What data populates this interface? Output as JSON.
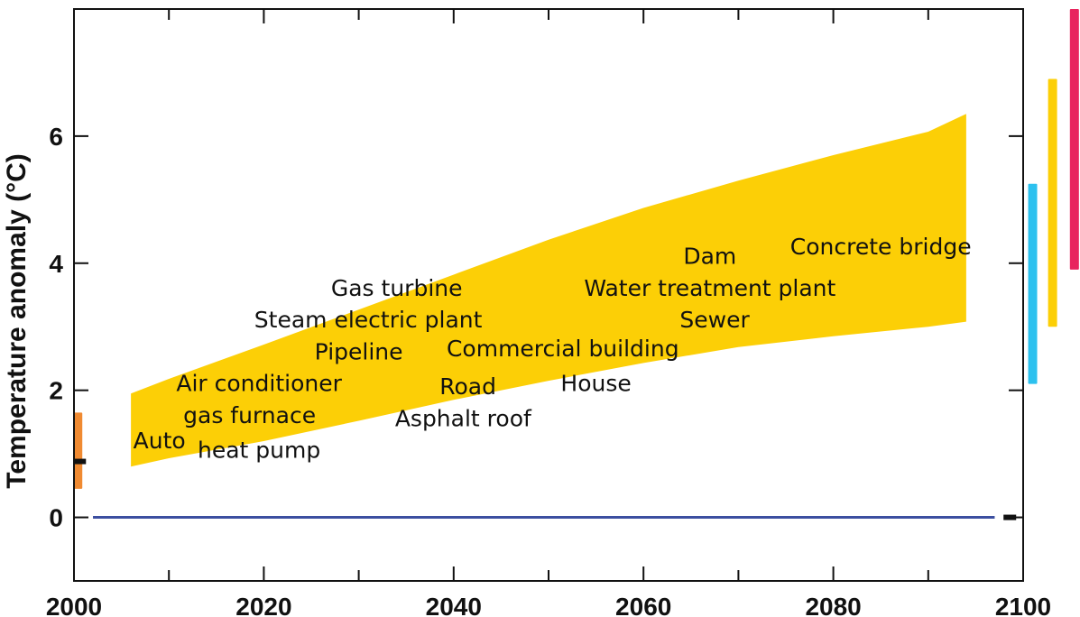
{
  "chart_data": {
    "type": "area",
    "title": "",
    "xlabel": "",
    "ylabel": "Temperature anomaly (°C)",
    "xlim": [
      2000,
      2100
    ],
    "ylim": [
      -1,
      8
    ],
    "x_ticks": [
      2000,
      2020,
      2040,
      2060,
      2080,
      2100
    ],
    "x_minor_ticks": [
      2010,
      2030,
      2050,
      2070,
      2090
    ],
    "y_ticks": [
      0,
      2,
      4,
      6
    ],
    "grid": false,
    "series": [
      {
        "kind": "band",
        "color": "#FCCF06",
        "x": [
          2006,
          2010,
          2020,
          2030,
          2040,
          2050,
          2060,
          2070,
          2080,
          2090,
          2094
        ],
        "upper": [
          1.95,
          2.18,
          2.72,
          3.27,
          3.82,
          4.37,
          4.87,
          5.3,
          5.7,
          6.07,
          6.35
        ],
        "lower": [
          0.8,
          0.93,
          1.2,
          1.52,
          1.85,
          2.15,
          2.43,
          2.68,
          2.85,
          3.0,
          3.08
        ]
      },
      {
        "kind": "line",
        "color": "#3C4FA0",
        "x": [
          2002,
          2097
        ],
        "y": [
          0,
          0
        ]
      }
    ],
    "side_bars": [
      {
        "color": "#F08A31",
        "x": 2000.4,
        "low": 0.45,
        "high": 1.65
      },
      {
        "color": "#2CC1EF",
        "x": 2101.0,
        "low": 2.1,
        "high": 5.25
      },
      {
        "color": "#FCCF06",
        "x": 2103.1,
        "low": 3.0,
        "high": 6.9
      },
      {
        "color": "#E8245E",
        "x": 2105.4,
        "low": 3.9,
        "high": 8.0
      }
    ],
    "markers": [
      {
        "color": "#111111",
        "x": 2000.5,
        "y": 0.88
      },
      {
        "color": "#111111",
        "x": 2098.5,
        "y": 0.0
      }
    ],
    "annotations": [
      {
        "text": "Gas turbine",
        "x": 2034.0,
        "y": 3.6
      },
      {
        "text": "Steam electric plant",
        "x": 2031.0,
        "y": 3.1
      },
      {
        "text": "Pipeline",
        "x": 2030.0,
        "y": 2.6
      },
      {
        "text": "Commercial building",
        "x": 2051.5,
        "y": 2.65
      },
      {
        "text": "Air conditioner",
        "x": 2019.5,
        "y": 2.1
      },
      {
        "text": "Road",
        "x": 2041.5,
        "y": 2.05
      },
      {
        "text": "House",
        "x": 2055.0,
        "y": 2.1
      },
      {
        "text": "gas furnace",
        "x": 2018.5,
        "y": 1.6
      },
      {
        "text": "Asphalt roof",
        "x": 2041.0,
        "y": 1.55
      },
      {
        "text": "Auto",
        "x": 2009.0,
        "y": 1.2
      },
      {
        "text": "heat pump",
        "x": 2019.5,
        "y": 1.05
      },
      {
        "text": "Dam",
        "x": 2067.0,
        "y": 4.1
      },
      {
        "text": "Water treatment plant",
        "x": 2067.0,
        "y": 3.6
      },
      {
        "text": "Sewer",
        "x": 2067.5,
        "y": 3.1
      },
      {
        "text": "Concrete bridge",
        "x": 2085.0,
        "y": 4.25
      }
    ]
  }
}
